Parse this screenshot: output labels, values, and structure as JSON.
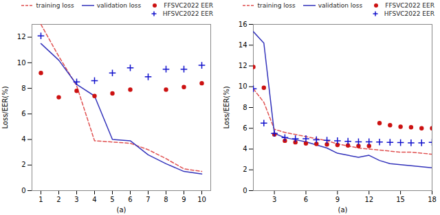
{
  "chart_data": [
    {
      "type": "line",
      "xlabel": "(a)",
      "ylabel": "Loss/EER(%)",
      "xlim": [
        0.5,
        10.5
      ],
      "ylim": [
        0,
        13
      ],
      "xticks": [
        1,
        2,
        3,
        4,
        5,
        6,
        7,
        8,
        9,
        10
      ],
      "yticks": [
        0,
        2,
        4,
        6,
        8,
        10,
        12
      ],
      "legend": "upper right",
      "series": [
        {
          "name": "training loss",
          "type": "line",
          "line_style": "dashed",
          "color": "#e05050",
          "x": [
            1,
            2,
            3,
            4,
            5,
            6,
            7,
            8,
            9,
            10
          ],
          "values": [
            13.0,
            10.5,
            8.2,
            3.9,
            3.8,
            3.7,
            3.2,
            2.5,
            1.7,
            1.5
          ]
        },
        {
          "name": "validation loss",
          "type": "line",
          "line_style": "solid",
          "color": "#3333bb",
          "x": [
            1,
            2,
            3,
            4,
            5,
            6,
            7,
            8,
            9,
            10
          ],
          "values": [
            11.5,
            10.2,
            8.3,
            7.4,
            4.0,
            3.9,
            2.8,
            2.1,
            1.5,
            1.3
          ]
        },
        {
          "name": "FFSVC2022 EER",
          "type": "scatter",
          "marker": "o",
          "color": "#cc1111",
          "x": [
            1,
            2,
            3,
            4,
            5,
            6,
            8,
            9,
            10
          ],
          "values": [
            9.2,
            7.3,
            7.8,
            7.4,
            7.6,
            7.9,
            7.9,
            8.1,
            8.4
          ]
        },
        {
          "name": "HFSVC2022 EER",
          "type": "scatter",
          "marker": "+",
          "color": "#1111cc",
          "x": [
            1,
            3,
            4,
            5,
            6,
            7,
            8,
            9,
            10
          ],
          "values": [
            12.1,
            8.5,
            8.6,
            9.2,
            9.6,
            8.9,
            9.5,
            9.5,
            9.8
          ]
        }
      ]
    },
    {
      "type": "line",
      "xlabel": "(a)",
      "ylabel": "Loss/EER(%)",
      "xlim": [
        1,
        18
      ],
      "ylim": [
        0,
        16
      ],
      "xticks": [
        3,
        6,
        9,
        12,
        15,
        18
      ],
      "yticks": [
        0,
        2,
        4,
        6,
        8,
        10,
        12,
        14,
        16
      ],
      "legend": "upper right",
      "series": [
        {
          "name": "training loss",
          "type": "line",
          "line_style": "dashed",
          "color": "#e05050",
          "x": [
            1,
            2,
            3,
            4,
            5,
            6,
            7,
            8,
            9,
            10,
            11,
            12,
            13,
            14,
            15,
            16,
            17,
            18
          ],
          "values": [
            9.8,
            8.5,
            5.9,
            5.6,
            5.4,
            5.2,
            5.0,
            4.8,
            4.5,
            4.3,
            4.1,
            4.0,
            3.9,
            3.8,
            3.7,
            3.7,
            3.6,
            3.5
          ]
        },
        {
          "name": "validation loss",
          "type": "line",
          "line_style": "solid",
          "color": "#3333bb",
          "x": [
            1,
            2,
            3,
            4,
            5,
            6,
            7,
            8,
            9,
            10,
            11,
            12,
            13,
            14,
            15,
            16,
            17,
            18
          ],
          "values": [
            15.3,
            14.2,
            5.5,
            5.1,
            4.9,
            4.7,
            4.4,
            4.1,
            3.6,
            3.4,
            3.2,
            3.4,
            2.9,
            2.6,
            2.5,
            2.4,
            2.3,
            2.2
          ]
        },
        {
          "name": "FFSVC2022 EER",
          "type": "scatter",
          "marker": "o",
          "color": "#cc1111",
          "x": [
            1,
            2,
            3,
            4,
            5,
            6,
            7,
            8,
            9,
            10,
            11,
            12,
            13,
            14,
            15,
            16,
            17,
            18
          ],
          "values": [
            11.9,
            9.9,
            5.4,
            4.8,
            4.65,
            4.55,
            4.5,
            4.45,
            4.4,
            4.35,
            4.3,
            4.3,
            6.5,
            6.3,
            6.15,
            6.1,
            6.0,
            6.0
          ]
        },
        {
          "name": "HFSVC2022 EER",
          "type": "scatter",
          "marker": "+",
          "color": "#1111cc",
          "x": [
            1,
            2,
            3,
            4,
            5,
            6,
            7,
            8,
            9,
            10,
            11,
            12,
            13,
            14,
            15,
            16,
            17,
            18
          ],
          "values": [
            9.8,
            6.5,
            5.5,
            5.1,
            5.0,
            5.0,
            4.9,
            4.85,
            4.8,
            4.75,
            4.7,
            4.7,
            4.68,
            4.65,
            4.62,
            4.6,
            4.6,
            4.65
          ]
        }
      ]
    }
  ]
}
